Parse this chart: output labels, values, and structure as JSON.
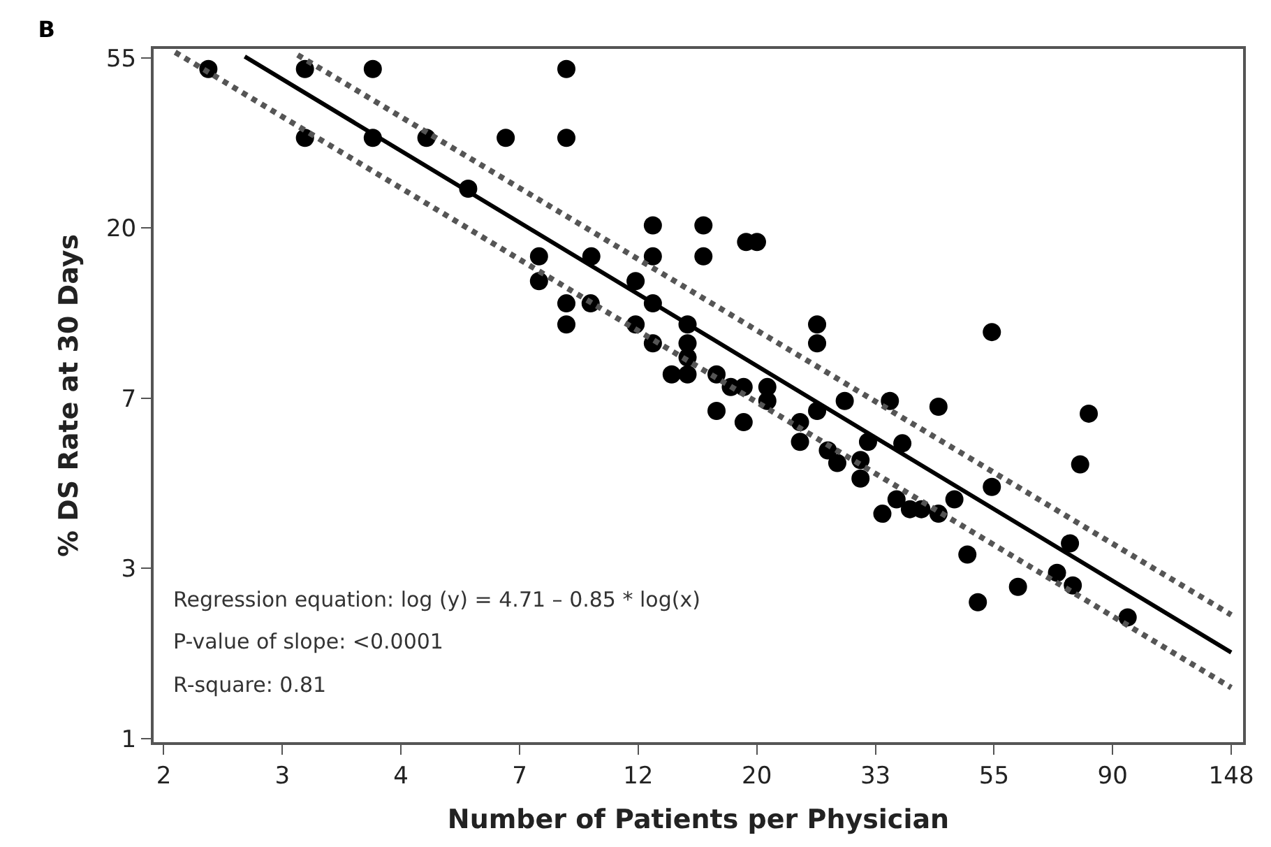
{
  "chart_data": {
    "type": "scatter",
    "title": "B",
    "xlabel": "Number of Patients per Physician",
    "ylabel": "% DS Rate at 30 Days",
    "log": "xy",
    "xlim": [
      1.58,
      156
    ],
    "ylim": [
      0.98,
      57.5
    ],
    "xticks": [
      {
        "value": 1.6487,
        "label": "2"
      },
      {
        "value": 2.7183,
        "label": "3"
      },
      {
        "value": 4.4817,
        "label": "4"
      },
      {
        "value": 7.389,
        "label": "7"
      },
      {
        "value": 12.182,
        "label": "12"
      },
      {
        "value": 20.086,
        "label": "20"
      },
      {
        "value": 33.115,
        "label": "33"
      },
      {
        "value": 54.598,
        "label": "55"
      },
      {
        "value": 90.017,
        "label": "90"
      },
      {
        "value": 148.41,
        "label": "148"
      }
    ],
    "yticks": [
      1,
      {
        "value": 2.7183,
        "label": "3"
      },
      {
        "value": 7.389,
        "label": "7"
      },
      {
        "value": 20.086,
        "label": "20"
      },
      {
        "value": 54.598,
        "label": "55"
      }
    ],
    "series": [
      {
        "marker": "circle",
        "color": "#000000",
        "x": [
          1.99,
          2.99,
          2.99,
          3.98,
          3.98,
          4.99,
          5.95,
          6.97,
          9.0,
          9.0,
          8.02,
          8.02,
          9.0,
          9.0,
          9.97,
          10.0,
          12.96,
          12.96,
          16.04,
          16.04,
          19.2,
          20.1,
          12.05,
          12.96,
          12.05,
          12.96,
          15.0,
          15.0,
          15.0,
          14.03,
          15.0,
          16.95,
          18.0,
          19.0,
          21.0,
          21.0,
          25.9,
          25.9,
          54.1,
          29.1,
          35.2,
          43.2,
          81.4,
          16.95,
          19.0,
          24.1,
          24.1,
          25.9,
          78.5,
          27.1,
          28.2,
          32.1,
          31.1,
          31.1,
          37.1,
          34.1,
          36.2,
          38.3,
          40.2,
          43.2,
          46.2,
          54.1,
          48.8,
          51.0,
          60.4,
          71.2,
          75.2,
          76.1,
          95.9
        ],
        "values": [
          51.1,
          51.1,
          34.1,
          51.1,
          34.1,
          34.1,
          25.3,
          34.1,
          51.1,
          34.1,
          17.0,
          14.7,
          12.9,
          11.4,
          12.9,
          17.0,
          20.4,
          17.0,
          20.4,
          17.0,
          18.5,
          18.5,
          14.7,
          12.9,
          11.4,
          10.2,
          11.4,
          10.2,
          9.39,
          8.5,
          8.5,
          8.5,
          7.89,
          7.89,
          7.89,
          7.27,
          11.4,
          10.2,
          10.9,
          7.27,
          7.27,
          7.03,
          6.75,
          6.86,
          6.42,
          6.42,
          5.72,
          6.86,
          5.01,
          5.44,
          5.05,
          5.72,
          5.14,
          4.61,
          5.67,
          3.75,
          4.08,
          3.85,
          3.85,
          3.75,
          4.08,
          4.39,
          2.95,
          2.23,
          2.44,
          2.65,
          3.15,
          2.46,
          2.04
        ]
      },
      {
        "type": "line",
        "line_style": "solid",
        "color": "#000000",
        "x": [
          2.32,
          148.4
        ],
        "values": [
          55.0,
          1.66
        ]
      },
      {
        "type": "line",
        "line_style": "dotted",
        "color": "#555555",
        "x": [
          2.9,
          148.4
        ],
        "values": [
          55.5,
          2.07
        ]
      },
      {
        "type": "line",
        "line_style": "dotted",
        "color": "#555555",
        "x": [
          1.73,
          148.4
        ],
        "values": [
          56.4,
          1.35
        ]
      }
    ],
    "annotations": [
      "Regression equation: log (y) = 4.71 – 0.85 * log(x)",
      "P-value of slope: <0.0001",
      "R-square: 0.81"
    ]
  }
}
